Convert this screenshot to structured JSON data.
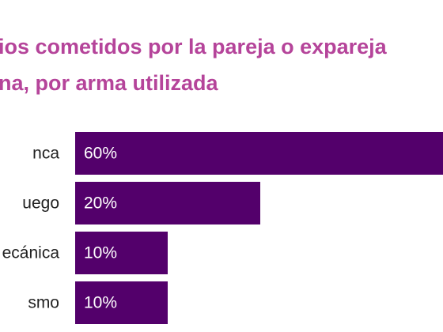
{
  "chart_data": {
    "type": "bar",
    "orientation": "horizontal",
    "title_lines": [
      "ios cometidos por la pareja o expareja",
      "na, por arma utilizada"
    ],
    "categories": [
      "nca",
      "uego",
      "ecánica",
      "smo"
    ],
    "values": [
      60,
      20,
      10,
      10
    ],
    "value_labels": [
      "60%",
      "20%",
      "10%",
      "10%"
    ],
    "xlim": [
      0,
      100
    ],
    "grid": false,
    "legend": "none",
    "bar_color": "#53006b",
    "title_color": "#b5449a"
  }
}
